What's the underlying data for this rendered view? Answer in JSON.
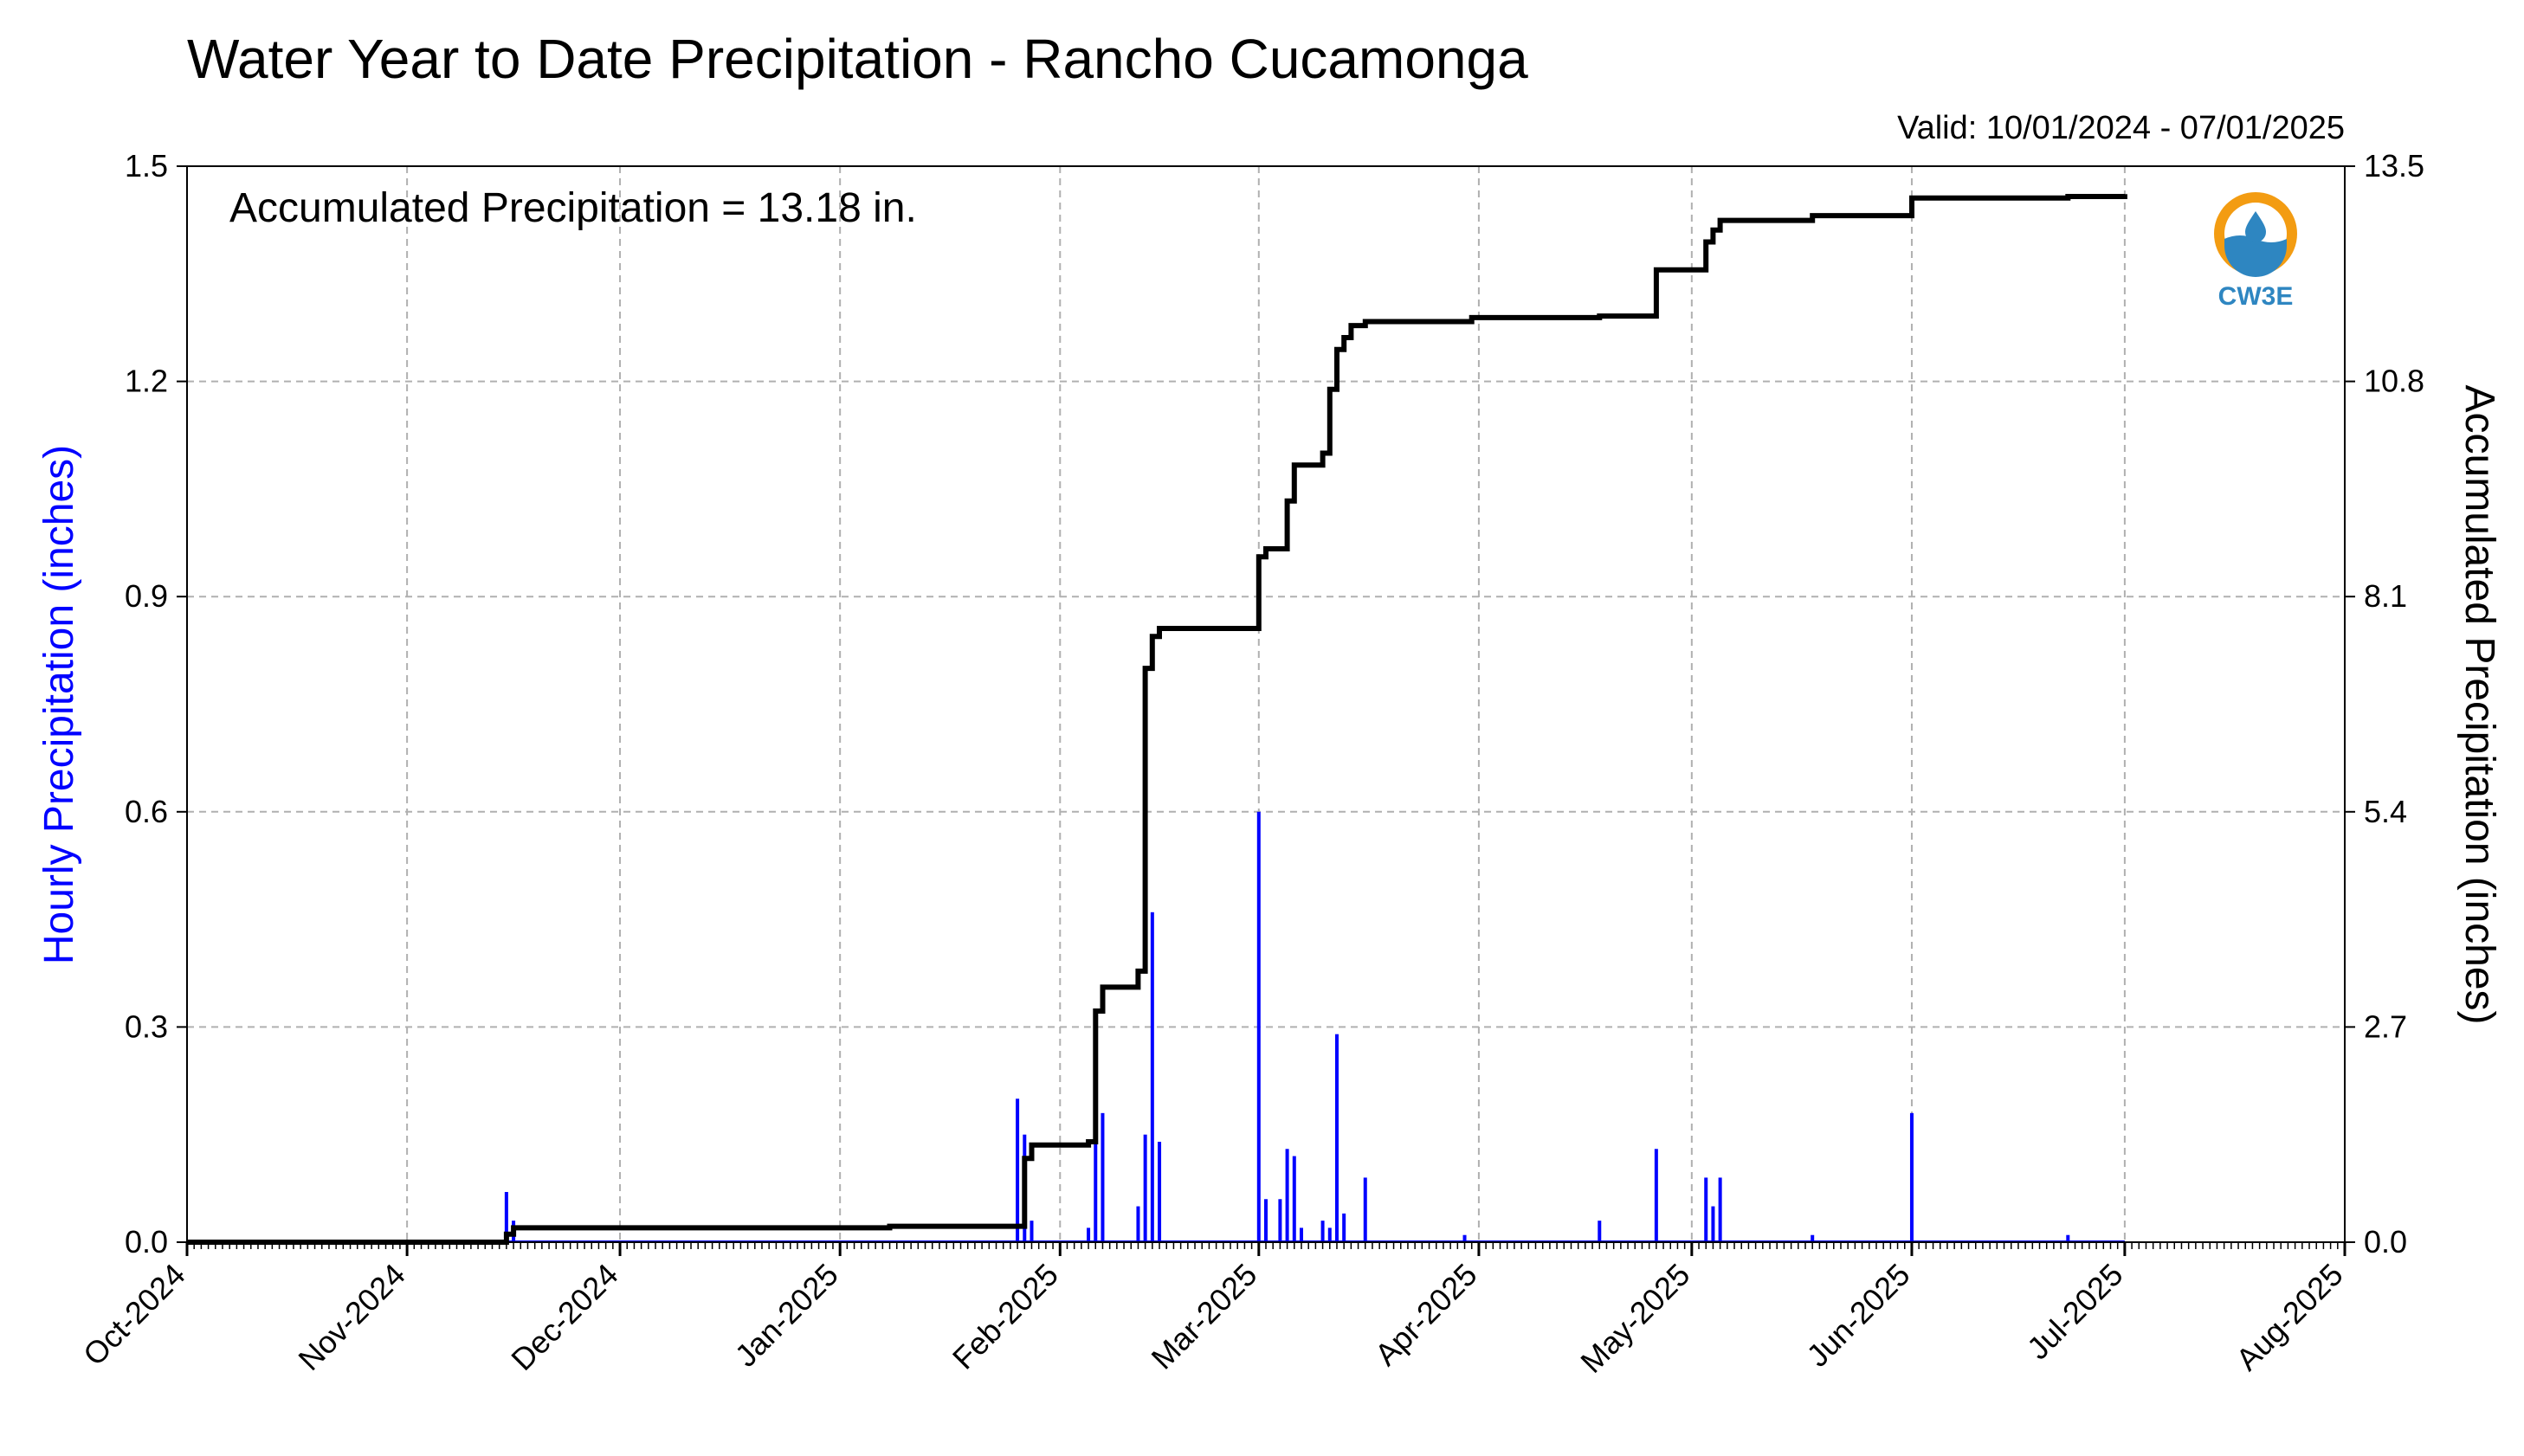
{
  "title": "Water Year to Date Precipitation - Rancho Cucamonga",
  "valid": "Valid: 10/01/2024 - 07/01/2025",
  "annotation": "Accumulated Precipitation = 13.18 in.",
  "logo": {
    "text": "CW3E",
    "colors": {
      "ring": "#f39c12",
      "water": "#2e86c1",
      "text": "#2e86c1"
    }
  },
  "chart_data": {
    "type": "bar",
    "xlabel": "",
    "ylabel_left": "Hourly Precipitation (inches)",
    "ylabel_right": "Accumulated Precipitation (inches)",
    "ylim_left": [
      0,
      1.5
    ],
    "ylim_right": [
      0,
      13.5
    ],
    "yticks_left": [
      "0.0",
      "0.3",
      "0.6",
      "0.9",
      "1.2",
      "1.5"
    ],
    "yticks_right": [
      "0.0",
      "2.7",
      "5.4",
      "8.1",
      "10.8",
      "13.5"
    ],
    "xlim": [
      "2024-10-01",
      "2025-08-01"
    ],
    "xticks": [
      "Oct-2024",
      "Nov-2024",
      "Dec-2024",
      "Jan-2025",
      "Feb-2025",
      "Mar-2025",
      "Apr-2025",
      "May-2025",
      "Jun-2025",
      "Jul-2025",
      "Aug-2025"
    ],
    "grid": true,
    "colors": {
      "hourly": "#0000ff",
      "accumulated": "#000000",
      "grid": "#b0b0b0"
    },
    "series": [
      {
        "name": "Hourly Precipitation (inches)",
        "type": "bar",
        "x": [
          "2024-11-15",
          "2024-11-16",
          "2025-01-26",
          "2025-01-27",
          "2025-01-28",
          "2025-02-05",
          "2025-02-06",
          "2025-02-07",
          "2025-02-12",
          "2025-02-13",
          "2025-02-14",
          "2025-02-15",
          "2025-03-01",
          "2025-03-02",
          "2025-03-04",
          "2025-03-05",
          "2025-03-06",
          "2025-03-07",
          "2025-03-10",
          "2025-03-11",
          "2025-03-12",
          "2025-03-13",
          "2025-03-16",
          "2025-03-30",
          "2025-04-18",
          "2025-04-26",
          "2025-05-03",
          "2025-05-04",
          "2025-05-05",
          "2025-05-18",
          "2025-06-01",
          "2025-06-23"
        ],
        "values": [
          0.07,
          0.03,
          0.2,
          0.15,
          0.03,
          0.02,
          0.16,
          0.18,
          0.05,
          0.15,
          0.46,
          0.14,
          0.6,
          0.06,
          0.06,
          0.13,
          0.12,
          0.02,
          0.03,
          0.02,
          0.29,
          0.04,
          0.09,
          0.01,
          0.03,
          0.13,
          0.09,
          0.05,
          0.09,
          0.01,
          0.18,
          0.01
        ]
      },
      {
        "name": "Accumulated Precipitation (inches)",
        "type": "line",
        "x": [
          "2024-10-01",
          "2024-11-14",
          "2024-11-15",
          "2024-11-16",
          "2025-01-08",
          "2025-01-26",
          "2025-01-27",
          "2025-01-28",
          "2025-02-04",
          "2025-02-05",
          "2025-02-06",
          "2025-02-07",
          "2025-02-11",
          "2025-02-12",
          "2025-02-13",
          "2025-02-14",
          "2025-02-15",
          "2025-02-28",
          "2025-03-01",
          "2025-03-02",
          "2025-03-04",
          "2025-03-05",
          "2025-03-06",
          "2025-03-09",
          "2025-03-10",
          "2025-03-11",
          "2025-03-12",
          "2025-03-13",
          "2025-03-14",
          "2025-03-16",
          "2025-03-29",
          "2025-03-31",
          "2025-04-18",
          "2025-04-25",
          "2025-04-26",
          "2025-05-02",
          "2025-05-03",
          "2025-05-04",
          "2025-05-05",
          "2025-05-17",
          "2025-05-18",
          "2025-05-31",
          "2025-06-01",
          "2025-06-20",
          "2025-06-23",
          "2025-07-01"
        ],
        "values": [
          0,
          0,
          0.1,
          0.18,
          0.2,
          0.2,
          1.05,
          1.22,
          1.22,
          1.26,
          2.9,
          3.2,
          3.2,
          3.4,
          7.2,
          7.6,
          7.7,
          7.7,
          8.6,
          8.7,
          8.7,
          9.3,
          9.75,
          9.75,
          9.9,
          10.7,
          11.2,
          11.35,
          11.5,
          11.55,
          11.55,
          11.6,
          11.62,
          11.62,
          12.2,
          12.2,
          12.55,
          12.7,
          12.82,
          12.82,
          12.88,
          12.88,
          13.1,
          13.1,
          13.12,
          13.15
        ]
      }
    ]
  }
}
